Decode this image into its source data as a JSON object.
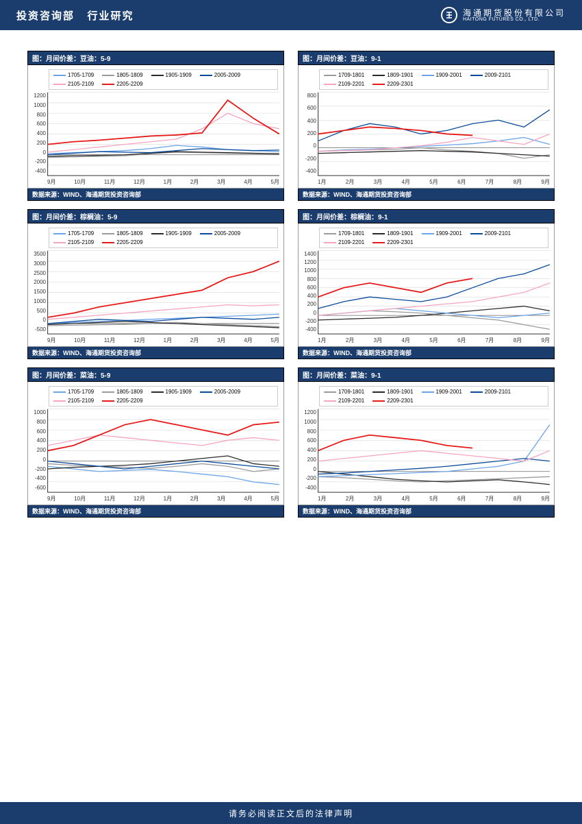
{
  "header": {
    "dept": "投资咨询部",
    "section": "行业研究",
    "company_cn": "海通期货股份有限公司",
    "company_en": "HAITONG FUTURES CO., LTD."
  },
  "footer": {
    "text": "请务必阅读正文后的法律声明"
  },
  "chart_common": {
    "source_label": "数据来源：WIND、海通期货投资咨询部",
    "border_color": "#999999",
    "title_bg": "#1a3d6e",
    "title_fg": "#ffffff",
    "grid_color": "#d0d0d0",
    "font_size_title": 10,
    "font_size_axis": 8,
    "font_size_legend": 8
  },
  "series_colors_59": {
    "s1": "#6aa4e8",
    "s2": "#9a9a9a",
    "s3": "#2a2a2a",
    "s4": "#0a4a9a",
    "s5": "#f5a5c0",
    "s6": "#e61919"
  },
  "series_colors_91": {
    "s1": "#9a9a9a",
    "s2": "#2a2a2a",
    "s3": "#6aa4e8",
    "s4": "#0a4a9a",
    "s5": "#f5a5c0",
    "s6": "#e61919"
  },
  "legend_59": [
    "1705-1709",
    "1805-1809",
    "1905-1909",
    "2005-2009",
    "2105-2109",
    "2205-2209"
  ],
  "legend_91": [
    "1709-1801",
    "1809-1901",
    "1909-2001",
    "2009-2101",
    "2109-2201",
    "2209-2301"
  ],
  "x_59": [
    "9月",
    "10月",
    "11月",
    "12月",
    "1月",
    "2月",
    "3月",
    "4月",
    "5月"
  ],
  "x_91": [
    "1月",
    "2月",
    "3月",
    "4月",
    "5月",
    "6月",
    "7月",
    "8月",
    "9月"
  ],
  "charts": [
    {
      "title": "图：月间价差：豆油：5-9",
      "palette": "59",
      "xset": "59",
      "ylim": [
        -400,
        1200
      ],
      "ytick_step": 200,
      "series": {
        "s1": [
          20,
          40,
          60,
          80,
          120,
          180,
          150,
          100,
          80,
          60
        ],
        "s2": [
          -50,
          -40,
          -30,
          -20,
          20,
          50,
          40,
          30,
          20,
          10
        ],
        "s3": [
          -30,
          -20,
          -10,
          0,
          30,
          60,
          50,
          40,
          30,
          20
        ],
        "s4": [
          0,
          30,
          60,
          50,
          40,
          80,
          120,
          100,
          80,
          90
        ],
        "s5": [
          50,
          100,
          150,
          200,
          250,
          300,
          500,
          800,
          600,
          500
        ],
        "s6": [
          200,
          250,
          280,
          320,
          360,
          380,
          420,
          1050,
          700,
          400
        ]
      }
    },
    {
      "title": "图：月间价差：豆油：9-1",
      "palette": "91",
      "xset": "91",
      "ylim": [
        -400,
        800
      ],
      "ytick_step": 200,
      "series": {
        "s1": [
          -50,
          -40,
          -30,
          -20,
          0,
          -30,
          -50,
          -80,
          -150,
          -100
        ],
        "s2": [
          -80,
          -70,
          -60,
          -50,
          -40,
          -50,
          -60,
          -80,
          -100,
          -120
        ],
        "s3": [
          -50,
          -30,
          -20,
          0,
          20,
          40,
          60,
          100,
          150,
          50
        ],
        "s4": [
          100,
          250,
          350,
          300,
          200,
          250,
          350,
          400,
          300,
          550
        ],
        "s5": [
          -50,
          -40,
          -30,
          0,
          30,
          80,
          150,
          100,
          50,
          200
        ],
        "s6": [
          200,
          250,
          300,
          280,
          250,
          200,
          180,
          0,
          0,
          0
        ]
      }
    },
    {
      "title": "图：月间价差：棕榈油：5-9",
      "palette": "59",
      "xset": "59",
      "ylim": [
        -500,
        3500
      ],
      "ytick_step": 500,
      "series": {
        "s1": [
          0,
          50,
          100,
          150,
          200,
          250,
          300,
          350,
          400,
          450
        ],
        "s2": [
          -100,
          -80,
          -60,
          -40,
          0,
          50,
          0,
          -50,
          -100,
          -150
        ],
        "s3": [
          -50,
          0,
          50,
          100,
          50,
          0,
          -50,
          -100,
          -150,
          -200
        ],
        "s4": [
          0,
          100,
          200,
          150,
          100,
          200,
          300,
          250,
          200,
          300
        ],
        "s5": [
          200,
          300,
          400,
          500,
          600,
          700,
          800,
          900,
          850,
          900
        ],
        "s6": [
          300,
          500,
          800,
          1000,
          1200,
          1400,
          1600,
          2200,
          2500,
          3000
        ]
      }
    },
    {
      "title": "图：月间价差：棕榈油：9-1",
      "palette": "91",
      "xset": "91",
      "ylim": [
        -400,
        1400
      ],
      "ytick_step": 200,
      "series": {
        "s1": [
          0,
          50,
          100,
          80,
          50,
          0,
          -50,
          -100,
          -200,
          -300
        ],
        "s2": [
          -100,
          -80,
          -60,
          -40,
          0,
          50,
          100,
          150,
          200,
          100
        ],
        "s3": [
          0,
          50,
          100,
          150,
          100,
          50,
          0,
          -50,
          0,
          50
        ],
        "s4": [
          150,
          300,
          400,
          350,
          300,
          400,
          600,
          800,
          900,
          1100
        ],
        "s5": [
          0,
          50,
          100,
          150,
          200,
          250,
          300,
          400,
          500,
          700
        ],
        "s6": [
          400,
          600,
          700,
          600,
          500,
          700,
          800,
          0,
          0,
          0
        ]
      }
    },
    {
      "title": "图：月间价差：菜油：5-9",
      "palette": "59",
      "xset": "59",
      "ylim": [
        -600,
        1000
      ],
      "ytick_step": 200,
      "series": {
        "s1": [
          -100,
          -150,
          -200,
          -180,
          -160,
          -200,
          -250,
          -300,
          -400,
          -450
        ],
        "s2": [
          -50,
          -80,
          -100,
          -120,
          -140,
          -100,
          -50,
          -100,
          -200,
          -150
        ],
        "s3": [
          -150,
          -120,
          -100,
          -80,
          -50,
          0,
          50,
          100,
          -50,
          -100
        ],
        "s4": [
          0,
          -50,
          -100,
          -150,
          -100,
          -50,
          0,
          -50,
          -100,
          -150
        ],
        "s5": [
          300,
          400,
          500,
          450,
          400,
          350,
          300,
          400,
          450,
          400
        ],
        "s6": [
          200,
          300,
          500,
          700,
          800,
          700,
          600,
          500,
          700,
          750
        ]
      }
    },
    {
      "title": "图：月间价差：菜油：9-1",
      "palette": "91",
      "xset": "91",
      "ylim": [
        -400,
        1200
      ],
      "ytick_step": 200,
      "series": {
        "s1": [
          -100,
          -120,
          -150,
          -180,
          -200,
          -180,
          -160,
          -140,
          -120,
          -100
        ],
        "s2": [
          0,
          -50,
          -100,
          -150,
          -180,
          -200,
          -180,
          -160,
          -200,
          -250
        ],
        "s3": [
          -100,
          -80,
          -60,
          -40,
          -20,
          0,
          50,
          100,
          200,
          900
        ],
        "s4": [
          -50,
          -30,
          0,
          30,
          60,
          100,
          150,
          200,
          250,
          200
        ],
        "s5": [
          200,
          250,
          300,
          350,
          400,
          350,
          300,
          250,
          200,
          400
        ],
        "s6": [
          400,
          600,
          700,
          650,
          600,
          500,
          450,
          0,
          0,
          0
        ]
      }
    }
  ]
}
